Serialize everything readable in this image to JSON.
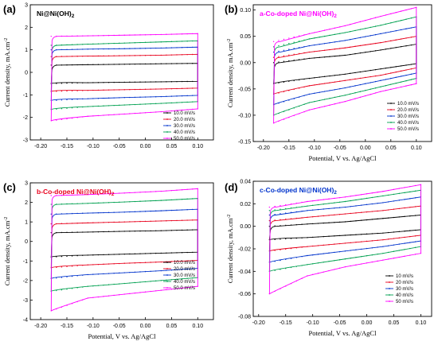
{
  "chart_data": [
    {
      "type": "line",
      "panel_label": "(a)",
      "title": "Ni@Ni(OH)",
      "title_sub": "2",
      "title_color": "#000000",
      "xlabel": "",
      "ylabel": "Current density, mA.cm",
      "ylabel_sup": "-2",
      "xlim": [
        -0.22,
        0.13
      ],
      "ylim": [
        -3,
        3
      ],
      "xticks": [
        "-0.20",
        "-0.15",
        "-0.10",
        "-0.05",
        "0.00",
        "0.05",
        "0.10"
      ],
      "xtick_values": [
        -0.2,
        -0.15,
        -0.1,
        -0.05,
        0.0,
        0.05,
        0.1
      ],
      "yticks": [
        "-3",
        "-2",
        "-1",
        "0",
        "1",
        "2",
        "3"
      ],
      "ytick_values": [
        -3,
        -2,
        -1,
        0,
        1,
        2,
        3
      ],
      "x_range": [
        -0.18,
        0.1
      ],
      "legend_position": "bottom-right",
      "series": [
        {
          "name": "10.0 mV/s",
          "color": "#000000",
          "upper": [
            0.32,
            0.34,
            0.36,
            0.38,
            0.4
          ],
          "lower": [
            -0.5,
            -0.46,
            -0.44,
            -0.42,
            -0.4
          ]
        },
        {
          "name": "20.0 mV/s",
          "color": "#e8001c",
          "upper": [
            0.7,
            0.72,
            0.74,
            0.76,
            0.8
          ],
          "lower": [
            -0.85,
            -0.8,
            -0.77,
            -0.74,
            -0.7
          ]
        },
        {
          "name": "30.0 mV/s",
          "color": "#0033cc",
          "upper": [
            1.0,
            1.03,
            1.05,
            1.08,
            1.12
          ],
          "lower": [
            -1.25,
            -1.17,
            -1.12,
            -1.08,
            -1.02
          ]
        },
        {
          "name": "40.0 mV/s",
          "color": "#00a050",
          "upper": [
            1.2,
            1.25,
            1.3,
            1.35,
            1.4
          ],
          "lower": [
            -1.65,
            -1.52,
            -1.45,
            -1.38,
            -1.3
          ]
        },
        {
          "name": "50.0 mV/s",
          "color": "#ff00ff",
          "upper": [
            1.6,
            1.62,
            1.65,
            1.68,
            1.72
          ],
          "lower": [
            -2.15,
            -1.95,
            -1.85,
            -1.75,
            -1.62
          ]
        }
      ]
    },
    {
      "type": "line",
      "panel_label": "(b)",
      "title": "a-Co-doped Ni@Ni(OH)",
      "title_sub": "2",
      "title_color": "#ff00ff",
      "xlabel": "Potential, V vs. Ag/AgCl",
      "ylabel": "Current density, mA.cm",
      "ylabel_sup": "-2",
      "xlim": [
        -0.22,
        0.13
      ],
      "ylim": [
        -0.15,
        0.11
      ],
      "xticks": [
        "-0.20",
        "-0.15",
        "-0.10",
        "-0.05",
        "0.00",
        "0.05",
        "0.10"
      ],
      "xtick_values": [
        -0.2,
        -0.15,
        -0.1,
        -0.05,
        0.0,
        0.05,
        0.1
      ],
      "yticks": [
        "-0.15",
        "-0.10",
        "-0.05",
        "0.00",
        "0.05",
        "0.10"
      ],
      "ytick_values": [
        -0.15,
        -0.1,
        -0.05,
        0.0,
        0.05,
        0.1
      ],
      "x_range": [
        -0.18,
        0.1
      ],
      "legend_position": "bottom-right",
      "series": [
        {
          "name": "10.0 mV/s",
          "color": "#000000",
          "upper": [
            0.0,
            0.008,
            0.014,
            0.024,
            0.035
          ],
          "lower": [
            -0.04,
            -0.03,
            -0.022,
            -0.012,
            -0.002
          ]
        },
        {
          "name": "20.0 mV/s",
          "color": "#e8001c",
          "upper": [
            0.01,
            0.02,
            0.028,
            0.038,
            0.05
          ],
          "lower": [
            -0.06,
            -0.044,
            -0.034,
            -0.024,
            -0.01
          ]
        },
        {
          "name": "30.0 mV/s",
          "color": "#0033cc",
          "upper": [
            0.02,
            0.032,
            0.042,
            0.055,
            0.068
          ],
          "lower": [
            -0.08,
            -0.06,
            -0.048,
            -0.034,
            -0.02
          ]
        },
        {
          "name": "40.0 mV/s",
          "color": "#00a050",
          "upper": [
            0.03,
            0.045,
            0.057,
            0.071,
            0.087
          ],
          "lower": [
            -0.1,
            -0.076,
            -0.062,
            -0.046,
            -0.03
          ]
        },
        {
          "name": "50.0 mV/s",
          "color": "#ff00ff",
          "upper": [
            0.04,
            0.055,
            0.07,
            0.088,
            0.105
          ],
          "lower": [
            -0.115,
            -0.09,
            -0.074,
            -0.055,
            -0.04
          ]
        }
      ]
    },
    {
      "type": "line",
      "panel_label": "(c)",
      "title": "b-Co-doped Ni@Ni(OH)",
      "title_sub": "2",
      "title_color": "#e8001c",
      "xlabel": "Potential, V vs. Ag/AgCl",
      "ylabel": "Current density, mA.cm",
      "ylabel_sup": "-2",
      "xlim": [
        -0.22,
        0.13
      ],
      "ylim": [
        -4,
        3
      ],
      "xticks": [
        "-0.20",
        "-0.15",
        "-0.10",
        "-0.05",
        "0.00",
        "0.05",
        "0.10"
      ],
      "xtick_values": [
        -0.2,
        -0.15,
        -0.1,
        -0.05,
        0.0,
        0.05,
        0.1
      ],
      "yticks": [
        "-4",
        "-3",
        "-2",
        "-1",
        "0",
        "1",
        "2",
        "3"
      ],
      "ytick_values": [
        -4,
        -3,
        -2,
        -1,
        0,
        1,
        2,
        3
      ],
      "x_range": [
        -0.18,
        0.1
      ],
      "legend_position": "bottom-right",
      "series": [
        {
          "name": "10.0 mV/s",
          "color": "#000000",
          "upper": [
            0.45,
            0.48,
            0.52,
            0.55,
            0.6
          ],
          "lower": [
            -0.8,
            -0.7,
            -0.65,
            -0.6,
            -0.55
          ]
        },
        {
          "name": "20.0 mV/s",
          "color": "#e8001c",
          "upper": [
            0.9,
            0.95,
            1.0,
            1.05,
            1.1
          ],
          "lower": [
            -1.35,
            -1.2,
            -1.12,
            -1.05,
            -0.97
          ]
        },
        {
          "name": "30.0 mV/s",
          "color": "#0033cc",
          "upper": [
            1.4,
            1.45,
            1.5,
            1.57,
            1.65
          ],
          "lower": [
            -1.9,
            -1.7,
            -1.6,
            -1.5,
            -1.38
          ]
        },
        {
          "name": "40.0 mV/s",
          "color": "#00a050",
          "upper": [
            1.9,
            1.95,
            2.02,
            2.1,
            2.2
          ],
          "lower": [
            -2.55,
            -2.3,
            -2.15,
            -2.0,
            -1.85
          ]
        },
        {
          "name": "50.0 mV/s",
          "color": "#ff00ff",
          "upper": [
            2.35,
            2.4,
            2.48,
            2.57,
            2.7
          ],
          "lower": [
            -3.55,
            -2.9,
            -2.7,
            -2.5,
            -2.3
          ]
        }
      ]
    },
    {
      "type": "line",
      "panel_label": "(d)",
      "title": "c-Co-doped Ni@Ni(OH)",
      "title_sub": "2",
      "title_color": "#0033cc",
      "xlabel": "Potential, V vs. Ag/AgCl",
      "ylabel": "Current density, mA.cm",
      "ylabel_sup": "-2",
      "xlim": [
        -0.21,
        0.12
      ],
      "ylim": [
        -0.08,
        0.04
      ],
      "xticks": [
        "-0.20",
        "-0.15",
        "-0.10",
        "-0.05",
        "0.00",
        "0.05",
        "0.10"
      ],
      "xtick_values": [
        -0.2,
        -0.15,
        -0.1,
        -0.05,
        0.0,
        0.05,
        0.1
      ],
      "yticks": [
        "-0.08",
        "-0.06",
        "-0.04",
        "-0.02",
        "0.00",
        "0.02",
        "0.04"
      ],
      "ytick_values": [
        -0.08,
        -0.06,
        -0.04,
        -0.02,
        0.0,
        0.02,
        0.04
      ],
      "x_range": [
        -0.18,
        0.1
      ],
      "legend_position": "bottom-right",
      "series": [
        {
          "name": "10 mV/s",
          "color": "#000000",
          "upper": [
            0.0,
            0.002,
            0.004,
            0.007,
            0.01
          ],
          "lower": [
            -0.012,
            -0.01,
            -0.008,
            -0.006,
            -0.003
          ]
        },
        {
          "name": "20 mV/s",
          "color": "#e8001c",
          "upper": [
            0.005,
            0.008,
            0.011,
            0.014,
            0.018
          ],
          "lower": [
            -0.022,
            -0.018,
            -0.015,
            -0.012,
            -0.008
          ]
        },
        {
          "name": "30 mV/s",
          "color": "#0033cc",
          "upper": [
            0.01,
            0.014,
            0.017,
            0.021,
            0.026
          ],
          "lower": [
            -0.032,
            -0.026,
            -0.022,
            -0.018,
            -0.013
          ]
        },
        {
          "name": "40 mV/s",
          "color": "#00a050",
          "upper": [
            0.014,
            0.018,
            0.022,
            0.027,
            0.032
          ],
          "lower": [
            -0.04,
            -0.034,
            -0.029,
            -0.024,
            -0.018
          ]
        },
        {
          "name": "50 mV/s",
          "color": "#ff00ff",
          "upper": [
            0.017,
            0.022,
            0.026,
            0.031,
            0.037
          ],
          "lower": [
            -0.06,
            -0.044,
            -0.036,
            -0.03,
            -0.024
          ]
        }
      ]
    }
  ]
}
